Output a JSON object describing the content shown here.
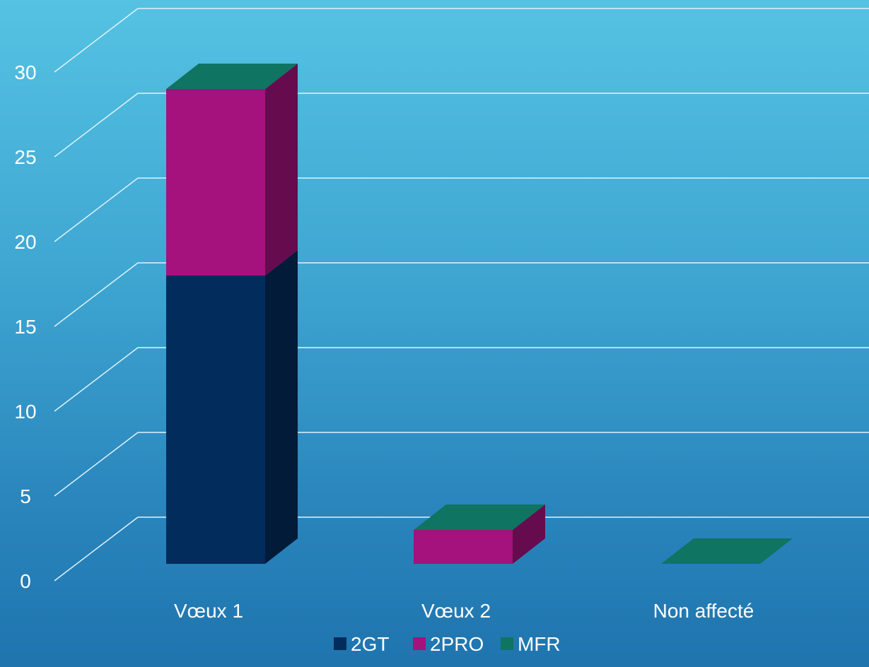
{
  "chart_data": {
    "type": "bar",
    "stacked": true,
    "three_d": true,
    "title": "",
    "xlabel": "",
    "ylabel": "",
    "categories": [
      "Vœux 1",
      "Vœux 2",
      "Non affecté"
    ],
    "series": [
      {
        "name": "2GT",
        "values": [
          17,
          0,
          0
        ],
        "color": "#022c5c"
      },
      {
        "name": "2PRO",
        "values": [
          11,
          2,
          0
        ],
        "color": "#a5117d"
      },
      {
        "name": "MFR",
        "values": [
          0,
          0,
          0
        ],
        "color": "#0f7462"
      }
    ],
    "ylim": [
      0,
      30
    ],
    "y_ticks": [
      "0",
      "5",
      "10",
      "15",
      "20",
      "25",
      "30"
    ],
    "grid": true,
    "legend_position": "bottom"
  }
}
